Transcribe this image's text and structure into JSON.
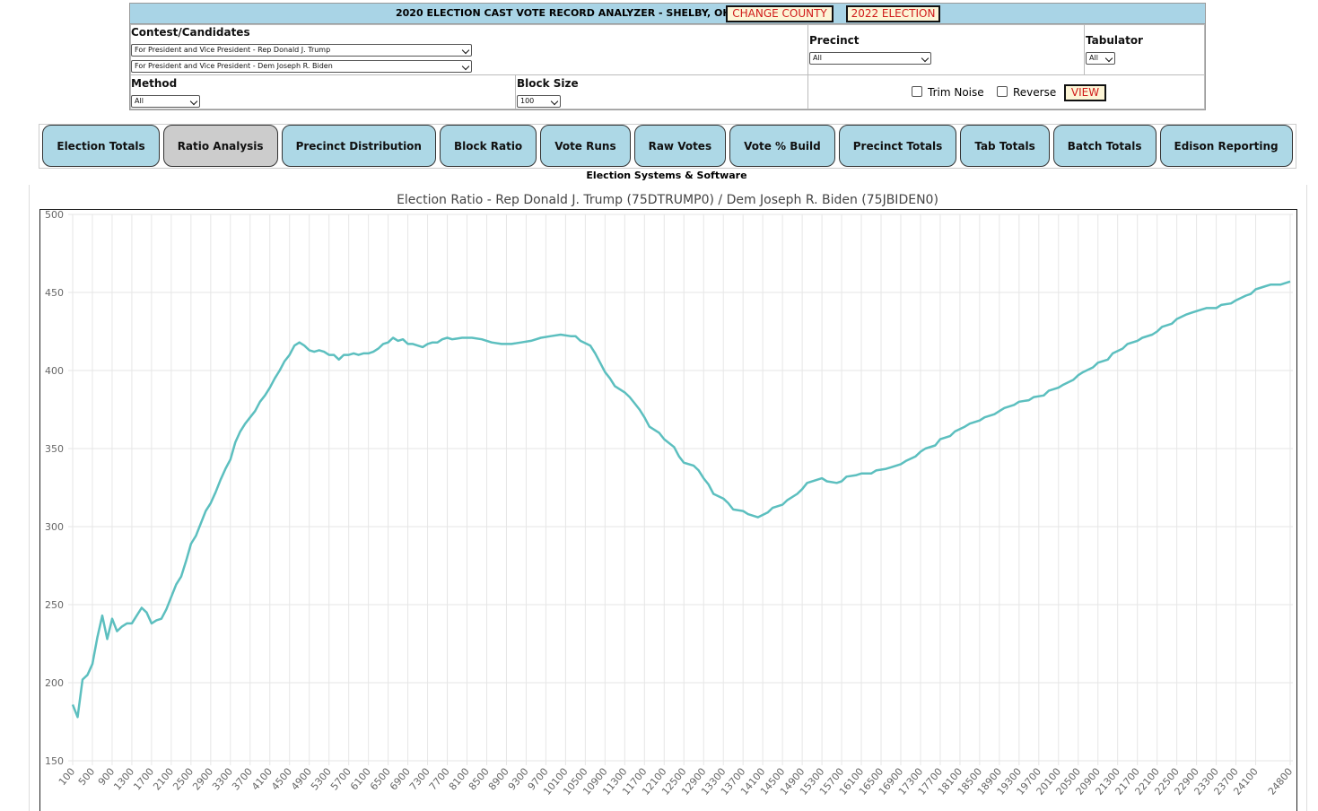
{
  "header": {
    "title": "2020 ELECTION CAST VOTE RECORD ANALYZER - SHELBY, OHIO",
    "buttons": [
      "CHANGE COUNTY",
      "2022 ELECTION"
    ]
  },
  "filters": {
    "contest_label": "Contest/Candidates",
    "contest_options": [
      "For President and Vice President - Rep Donald J. Trump",
      "For President and Vice President - Dem Joseph R. Biden"
    ],
    "precinct_label": "Precinct",
    "precinct_value": "All",
    "tabulator_label": "Tabulator",
    "tabulator_value": "All",
    "method_label": "Method",
    "method_value": "All",
    "block_size_label": "Block Size",
    "block_size_value": "100",
    "trim_noise": "Trim Noise",
    "reverse": "Reverse",
    "view": "VIEW"
  },
  "tabs": [
    "Election Totals",
    "Ratio Analysis",
    "Precinct Distribution",
    "Block Ratio",
    "Vote Runs",
    "Raw Votes",
    "Vote % Build",
    "Precinct Totals",
    "Tab Totals",
    "Batch Totals",
    "Edison Reporting"
  ],
  "active_tab": 1,
  "vendor": "Election Systems & Software",
  "chart_data": {
    "type": "line",
    "title": "Election Ratio - Rep Donald J. Trump (75DTRUMP0) / Dem Joseph R. Biden (75JBIDEN0)",
    "color": "#5cbfbf",
    "grid": true,
    "x": [
      100,
      200,
      300,
      400,
      500,
      600,
      700,
      800,
      900,
      1000,
      1100,
      1200,
      1300,
      1400,
      1500,
      1600,
      1700,
      1800,
      1900,
      2000,
      2100,
      2200,
      2300,
      2400,
      2500,
      2600,
      2700,
      2800,
      2900,
      3000,
      3100,
      3200,
      3300,
      3400,
      3500,
      3600,
      3700,
      3800,
      3900,
      4000,
      4100,
      4200,
      4300,
      4400,
      4500,
      4600,
      4700,
      4800,
      4900,
      5000,
      5100,
      5200,
      5300,
      5400,
      5500,
      5600,
      5700,
      5800,
      5900,
      6000,
      6100,
      6200,
      6300,
      6400,
      6500,
      6600,
      6700,
      6800,
      6900,
      7000,
      7100,
      7200,
      7300,
      7400,
      7500,
      7600,
      7700,
      7800,
      8000,
      8200,
      8400,
      8600,
      8800,
      9000,
      9200,
      9400,
      9600,
      9800,
      10000,
      10200,
      10300,
      10400,
      10600,
      10700,
      10800,
      10900,
      11000,
      11100,
      11300,
      11400,
      11500,
      11600,
      11700,
      11800,
      12000,
      12100,
      12300,
      12400,
      12500,
      12700,
      12800,
      12900,
      13000,
      13100,
      13300,
      13400,
      13500,
      13700,
      13800,
      13900,
      14000,
      14200,
      14300,
      14500,
      14600,
      14800,
      14900,
      15000,
      15200,
      15300,
      15400,
      15600,
      15700,
      15800,
      16000,
      16100,
      16300,
      16400,
      16600,
      16700,
      16900,
      17000,
      17200,
      17300,
      17400,
      17600,
      17700,
      17900,
      18000,
      18200,
      18300,
      18500,
      18600,
      18800,
      18900,
      19000,
      19200,
      19300,
      19500,
      19600,
      19800,
      19900,
      20100,
      20200,
      20400,
      20500,
      20600,
      20800,
      20900,
      21100,
      21200,
      21400,
      21500,
      21700,
      21800,
      22000,
      22100,
      22200,
      22400,
      22500,
      22700,
      22800,
      23000,
      23100,
      23300,
      23400,
      23600,
      23700,
      23900,
      24000,
      24100,
      24300,
      24400,
      24600,
      24800
    ],
    "values": [
      186,
      178,
      202,
      205,
      212,
      229,
      243,
      228,
      241,
      233,
      236,
      238,
      238,
      243,
      248,
      245,
      238,
      240,
      241,
      247,
      255,
      263,
      268,
      278,
      289,
      294,
      302,
      310,
      315,
      322,
      330,
      337,
      343,
      354,
      361,
      366,
      370,
      374,
      380,
      384,
      389,
      395,
      400,
      406,
      410,
      416,
      418,
      416,
      413,
      412,
      413,
      412,
      410,
      410,
      407,
      410,
      410,
      411,
      410,
      411,
      411,
      412,
      414,
      417,
      418,
      421,
      419,
      420,
      417,
      417,
      416,
      415,
      417,
      418,
      418,
      420,
      421,
      420,
      421,
      421,
      420,
      418,
      417,
      417,
      418,
      419,
      421,
      422,
      423,
      422,
      422,
      419,
      416,
      411,
      405,
      399,
      395,
      390,
      386,
      383,
      379,
      375,
      370,
      364,
      360,
      356,
      351,
      345,
      341,
      339,
      336,
      331,
      327,
      321,
      318,
      315,
      311,
      310,
      308,
      307,
      306,
      309,
      312,
      314,
      317,
      321,
      324,
      328,
      330,
      331,
      329,
      328,
      329,
      332,
      333,
      334,
      334,
      336,
      337,
      338,
      340,
      342,
      345,
      348,
      350,
      352,
      356,
      358,
      361,
      364,
      366,
      368,
      370,
      372,
      374,
      376,
      378,
      380,
      381,
      383,
      384,
      387,
      389,
      391,
      394,
      397,
      399,
      402,
      405,
      407,
      411,
      414,
      417,
      419,
      421,
      423,
      425,
      428,
      430,
      433,
      436,
      437,
      439,
      440,
      440,
      442,
      443,
      445,
      448,
      449,
      452,
      454,
      455,
      455,
      457
    ],
    "xlim": [
      100,
      24800
    ],
    "xticks": [
      100,
      500,
      900,
      1300,
      1700,
      2100,
      2500,
      2900,
      3300,
      3700,
      4100,
      4500,
      4900,
      5300,
      5700,
      6100,
      6500,
      6900,
      7300,
      7700,
      8100,
      8500,
      8900,
      9300,
      9700,
      10100,
      10500,
      10900,
      11300,
      11700,
      12100,
      12500,
      12900,
      13300,
      13700,
      14100,
      14500,
      14900,
      15300,
      15700,
      16100,
      16500,
      16900,
      17300,
      17700,
      18100,
      18500,
      18900,
      19300,
      19700,
      20100,
      20500,
      20900,
      21300,
      21700,
      22100,
      22500,
      22900,
      23300,
      23700,
      24100,
      24800
    ],
    "ylim": [
      150,
      500
    ],
    "yticks": [
      150,
      200,
      250,
      300,
      350,
      400,
      450,
      500
    ]
  }
}
